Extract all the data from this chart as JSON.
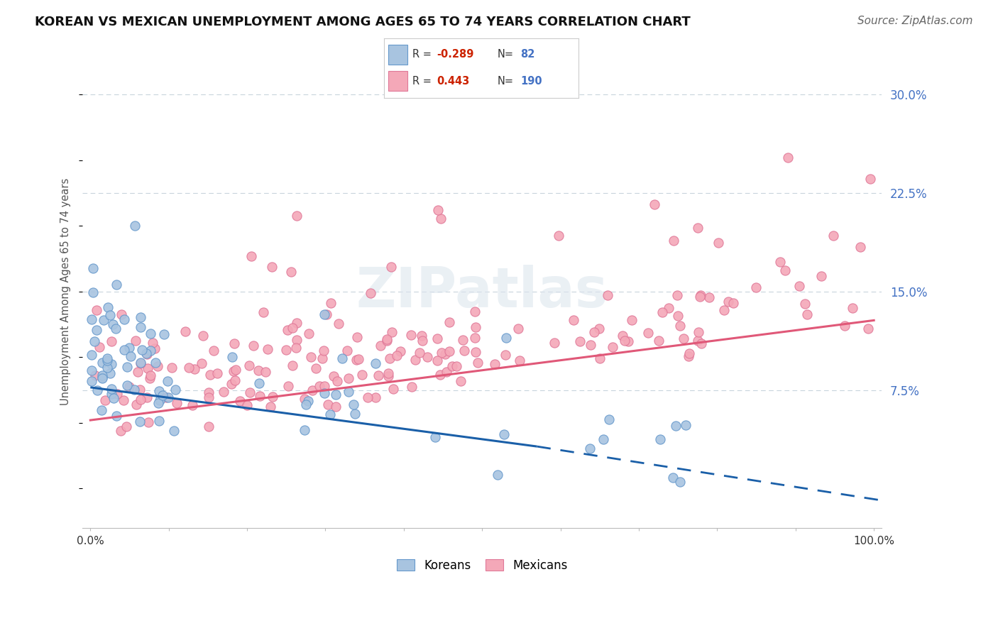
{
  "title": "KOREAN VS MEXICAN UNEMPLOYMENT AMONG AGES 65 TO 74 YEARS CORRELATION CHART",
  "source": "Source: ZipAtlas.com",
  "ylabel": "Unemployment Among Ages 65 to 74 years",
  "right_ytick_labels": [
    "7.5%",
    "15.0%",
    "22.5%",
    "30.0%"
  ],
  "right_ytick_values": [
    0.075,
    0.15,
    0.225,
    0.3
  ],
  "xlim": [
    -0.01,
    1.01
  ],
  "ylim": [
    -0.03,
    0.33
  ],
  "legend_korean_R": "-0.289",
  "legend_korean_N": "82",
  "legend_mexican_R": "0.443",
  "legend_mexican_N": "190",
  "korean_color": "#a8c4e0",
  "korean_edge_color": "#6699cc",
  "mexican_color": "#f4a8b8",
  "mexican_edge_color": "#e07898",
  "korean_line_color": "#1a5fa8",
  "mexican_line_color": "#e05878",
  "background_color": "#ffffff",
  "title_fontsize": 13,
  "source_fontsize": 11,
  "korean_trend": {
    "x_start": 0.0,
    "x_solid_end": 0.57,
    "x_end": 1.02,
    "y_start": 0.077,
    "y_solid_end": 0.032,
    "y_end": -0.01
  },
  "mexican_trend": {
    "x_start": 0.0,
    "x_end": 1.0,
    "y_start": 0.052,
    "y_end": 0.128
  }
}
